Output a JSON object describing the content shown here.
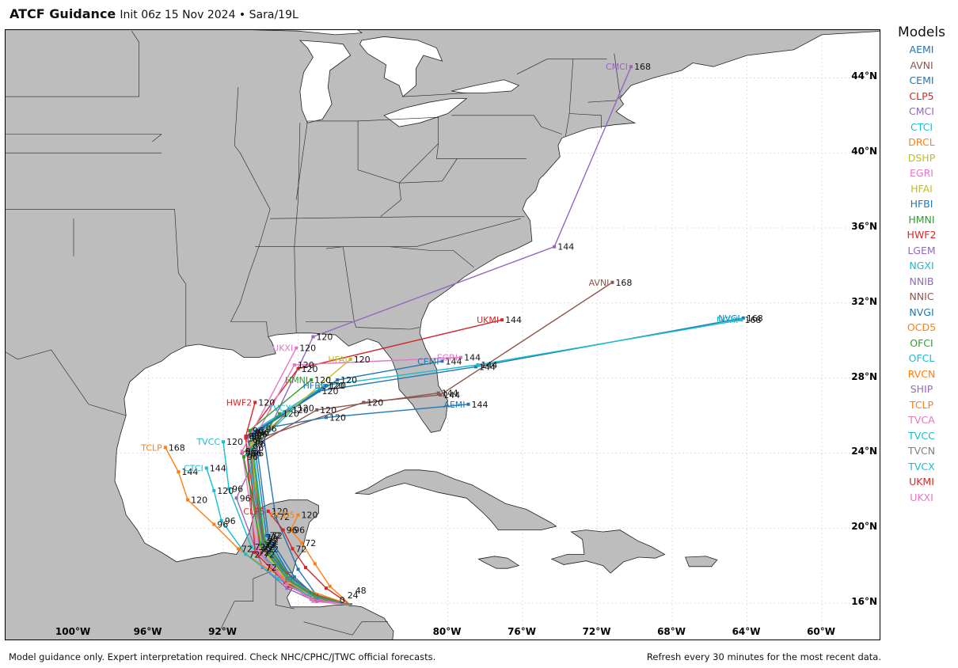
{
  "title": {
    "main": "ATCF Guidance",
    "sub": "Init 06z 15 Nov 2024 • Sara/19L"
  },
  "colors": {
    "land": "#bdbdbd",
    "ocean": "#ffffff",
    "border": "#222222",
    "grid": "#d7d7d7",
    "AEMI": "#1f77b4",
    "AVNI": "#8c564b",
    "CEMI": "#1f77b4",
    "CLP5": "#d62728",
    "CMCI": "#9467bd",
    "CTCI": "#17becf",
    "DRCL": "#ff7f0e",
    "DSHP": "#bcbd22",
    "EGRI": "#e377c2",
    "HFAI": "#bcbd22",
    "HFBI": "#1f77b4",
    "HMNI": "#2ca02c",
    "HWF2": "#d62728",
    "LGEM": "#9467bd",
    "NGXI": "#17becf",
    "NNIB": "#9467bd",
    "NNIC": "#8c564b",
    "NVGI": "#1f77b4",
    "OCD5": "#ff7f0e",
    "OFCI": "#2ca02c",
    "OFCL": "#17becf",
    "RVCN": "#ff7f0e",
    "SHIP": "#9467bd",
    "TCLP": "#ff7f0e",
    "TVCA": "#e377c2",
    "TVCC": "#17becf",
    "TVCN": "#7f7f7f",
    "TVCX": "#17becf",
    "UKMI": "#d62728",
    "UKXI": "#e377c2"
  },
  "lat_ticks": [
    "44°N",
    "40°N",
    "36°N",
    "32°N",
    "28°N",
    "24°N",
    "20°N",
    "16°N"
  ],
  "lon_ticks": [
    "100°W",
    "96°W",
    "92°W",
    "80°W",
    "76°W",
    "72°W",
    "68°W",
    "64°W",
    "60°W"
  ],
  "legend": {
    "title": "Models",
    "items": [
      "AEMI",
      "AVNI",
      "CEMI",
      "CLP5",
      "CMCI",
      "CTCI",
      "DRCL",
      "DSHP",
      "EGRI",
      "HFAI",
      "HFBI",
      "HMNI",
      "HWF2",
      "LGEM",
      "NGXI",
      "NNIB",
      "NNIC",
      "NVGI",
      "OCD5",
      "OFCI",
      "OFCL",
      "RVCN",
      "SHIP",
      "TCLP",
      "TVCA",
      "TVCC",
      "TVCN",
      "TVCX",
      "UKMI",
      "UKXI"
    ]
  },
  "tracks": [
    {
      "model": "CMCI",
      "hours": [
        0,
        24,
        48,
        72,
        96,
        120,
        144,
        168
      ],
      "lon": [
        -85.2,
        -87.3,
        -88.6,
        -89.9,
        -91.3,
        -87.2,
        -74.3,
        -70.2
      ],
      "lat": [
        15.9,
        16.2,
        16.8,
        17.9,
        21.6,
        30.2,
        35.0,
        44.6
      ]
    },
    {
      "model": "AVNI",
      "hours": [
        0,
        24,
        48,
        72,
        96,
        120,
        144,
        168
      ],
      "lon": [
        -85.2,
        -87.0,
        -88.2,
        -89.8,
        -90.6,
        -84.5,
        -80.4,
        -71.2
      ],
      "lat": [
        15.9,
        16.1,
        16.9,
        18.9,
        24.6,
        26.7,
        27.1,
        33.1
      ]
    },
    {
      "model": "NVGI",
      "hours": [
        0,
        24,
        48,
        72,
        96,
        120,
        144,
        168
      ],
      "lon": [
        -85.2,
        -87.1,
        -88.4,
        -89.9,
        -90.7,
        -86.9,
        -78.5,
        -64.2
      ],
      "lat": [
        15.9,
        16.3,
        17.2,
        19.2,
        24.9,
        27.3,
        28.6,
        31.2
      ]
    },
    {
      "model": "NGXI",
      "hours": [
        0,
        24,
        48,
        72,
        96,
        120,
        144,
        168
      ],
      "lon": [
        -85.2,
        -87.0,
        -88.3,
        -89.8,
        -90.5,
        -86.6,
        -78.4,
        -64.3
      ],
      "lat": [
        15.9,
        16.2,
        17.3,
        19.4,
        25.1,
        27.6,
        28.7,
        31.1
      ]
    },
    {
      "model": "UKMI",
      "hours": [
        0,
        24,
        48,
        72,
        96,
        120,
        144
      ],
      "lon": [
        -85.2,
        -87.1,
        -88.5,
        -90.0,
        -90.8,
        -88.0,
        -77.1
      ],
      "lat": [
        15.9,
        16.2,
        16.9,
        18.6,
        24.8,
        28.5,
        31.1
      ]
    },
    {
      "model": "CEMI",
      "hours": [
        0,
        24,
        48,
        72,
        96,
        120,
        144
      ],
      "lon": [
        -85.2,
        -87.1,
        -88.4,
        -89.7,
        -90.4,
        -85.9,
        -80.3
      ],
      "lat": [
        15.9,
        16.3,
        17.4,
        19.6,
        25.0,
        27.9,
        28.9
      ]
    },
    {
      "model": "EGRI",
      "hours": [
        0,
        24,
        48,
        72,
        96,
        120,
        144
      ],
      "lon": [
        -85.2,
        -87.2,
        -88.5,
        -90.1,
        -90.6,
        -88.2,
        -79.3
      ],
      "lat": [
        15.9,
        16.1,
        17.0,
        18.9,
        24.3,
        28.7,
        29.1
      ]
    },
    {
      "model": "AEMI",
      "hours": [
        0,
        24,
        48,
        72,
        96,
        120,
        144
      ],
      "lon": [
        -85.2,
        -87.0,
        -88.0,
        -89.2,
        -89.9,
        -86.5,
        -78.9
      ],
      "lat": [
        15.9,
        16.4,
        17.8,
        20.6,
        25.3,
        25.9,
        26.6
      ]
    },
    {
      "model": "NNIC",
      "hours": [
        0,
        24,
        48,
        72,
        96,
        120,
        144
      ],
      "lon": [
        -85.2,
        -87.2,
        -88.6,
        -89.9,
        -91.0,
        -87.0,
        -80.5
      ],
      "lat": [
        15.9,
        16.5,
        17.6,
        19.5,
        24.0,
        26.3,
        27.2
      ]
    },
    {
      "model": "TCLP",
      "hours": [
        0,
        24,
        48,
        72,
        96,
        120,
        144,
        168
      ],
      "lon": [
        -85.2,
        -87.5,
        -89.6,
        -91.2,
        -92.5,
        -93.9,
        -94.4,
        -95.1
      ],
      "lat": [
        15.9,
        16.7,
        17.8,
        18.9,
        20.2,
        21.5,
        23.0,
        24.3
      ]
    },
    {
      "model": "CTCI",
      "hours": [
        0,
        24,
        48,
        72,
        96,
        120,
        144
      ],
      "lon": [
        -85.2,
        -87.4,
        -89.1,
        -90.8,
        -92.1,
        -92.5,
        -92.9
      ],
      "lat": [
        15.9,
        16.4,
        17.3,
        18.6,
        20.4,
        22.0,
        23.2
      ]
    },
    {
      "model": "TVCC",
      "hours": [
        0,
        24,
        48,
        72,
        96,
        120
      ],
      "lon": [
        -85.2,
        -87.3,
        -88.8,
        -90.5,
        -91.7,
        -92.0
      ],
      "lat": [
        15.9,
        16.5,
        17.6,
        19.0,
        22.1,
        24.6
      ]
    },
    {
      "model": "CLP5",
      "hours": [
        0,
        24,
        48,
        72,
        96,
        120
      ],
      "lon": [
        -85.2,
        -86.5,
        -87.6,
        -88.3,
        -88.8,
        -89.6
      ],
      "lat": [
        15.9,
        16.8,
        17.9,
        18.9,
        19.9,
        20.9
      ]
    },
    {
      "model": "OCD5",
      "hours": [
        0,
        24,
        48,
        72,
        96,
        120
      ],
      "lon": [
        -85.2,
        -86.3,
        -87.1,
        -87.8,
        -88.4,
        -88.0
      ],
      "lat": [
        15.9,
        16.9,
        18.1,
        19.2,
        19.9,
        20.7
      ]
    },
    {
      "model": "HWF2",
      "hours": [
        0,
        24,
        48,
        72,
        96,
        120
      ],
      "lon": [
        -85.2,
        -87.0,
        -88.7,
        -90.3,
        -90.8,
        -90.3
      ],
      "lat": [
        15.9,
        16.4,
        17.1,
        18.7,
        24.9,
        26.7
      ]
    },
    {
      "model": "HMNI",
      "hours": [
        0,
        24,
        48,
        72,
        96,
        120
      ],
      "lon": [
        -85.2,
        -87.1,
        -88.4,
        -89.8,
        -90.6,
        -87.3
      ],
      "lat": [
        15.9,
        16.3,
        17.2,
        19.3,
        25.2,
        27.9
      ]
    },
    {
      "model": "HFBI",
      "hours": [
        0,
        24,
        48,
        72,
        96,
        120
      ],
      "lon": [
        -85.2,
        -87.0,
        -88.2,
        -89.6,
        -90.3,
        -86.5
      ],
      "lat": [
        15.9,
        16.3,
        17.4,
        19.6,
        25.1,
        27.6
      ]
    },
    {
      "model": "HFAI",
      "hours": [
        0,
        24,
        48,
        72,
        96,
        120
      ],
      "lon": [
        -85.2,
        -87.1,
        -88.5,
        -90.0,
        -90.5,
        -85.2
      ],
      "lat": [
        15.9,
        16.3,
        17.1,
        19.0,
        24.5,
        29.0
      ]
    },
    {
      "model": "UKXI",
      "hours": [
        0,
        24,
        48,
        72,
        96,
        120
      ],
      "lon": [
        -85.2,
        -87.2,
        -88.6,
        -90.2,
        -91.0,
        -88.1
      ],
      "lat": [
        15.9,
        16.2,
        17.0,
        18.8,
        24.1,
        29.6
      ]
    },
    {
      "model": "OFCI",
      "hours": [
        0,
        24,
        48,
        72,
        96,
        120
      ],
      "lon": [
        -85.2,
        -87.1,
        -88.6,
        -90.0,
        -90.9,
        -89.0
      ],
      "lat": [
        15.9,
        16.4,
        17.3,
        19.1,
        23.8,
        26.1
      ]
    },
    {
      "model": "TVCX",
      "hours": [
        0,
        24,
        48,
        72,
        96,
        120
      ],
      "lon": [
        -85.2,
        -87.1,
        -88.5,
        -89.9,
        -90.7,
        -88.2
      ],
      "lat": [
        15.9,
        16.3,
        17.2,
        19.1,
        24.0,
        26.4
      ]
    },
    {
      "model": "TVCN",
      "hours": [
        0,
        24,
        48,
        72,
        96,
        120
      ],
      "lon": [
        -85.2,
        -87.1,
        -88.5,
        -89.9,
        -90.6,
        -88.5
      ],
      "lat": [
        15.9,
        16.3,
        17.2,
        19.1,
        24.0,
        26.3
      ]
    }
  ],
  "map_labels": {
    "end_labels": [
      "CMCI",
      "AVNI",
      "NVGI",
      "NGXI",
      "UKMI",
      "CEMI",
      "EGRI",
      "AEMI",
      "TCLP",
      "CTCI",
      "TVCC",
      "HWF2",
      "HMNI",
      "HFBI",
      "HFAI",
      "UKXI",
      "TVCX",
      "CLP5",
      "OCD5"
    ],
    "hour_label_values": [
      "168",
      "144",
      "120",
      "96",
      "72",
      "48",
      "24",
      "0"
    ]
  },
  "footer": {
    "left": "Model guidance only. Expert interpretation required. Check NHC/CPHC/JTWC official forecasts.",
    "right": "Refresh every 30 minutes for the most recent data."
  }
}
